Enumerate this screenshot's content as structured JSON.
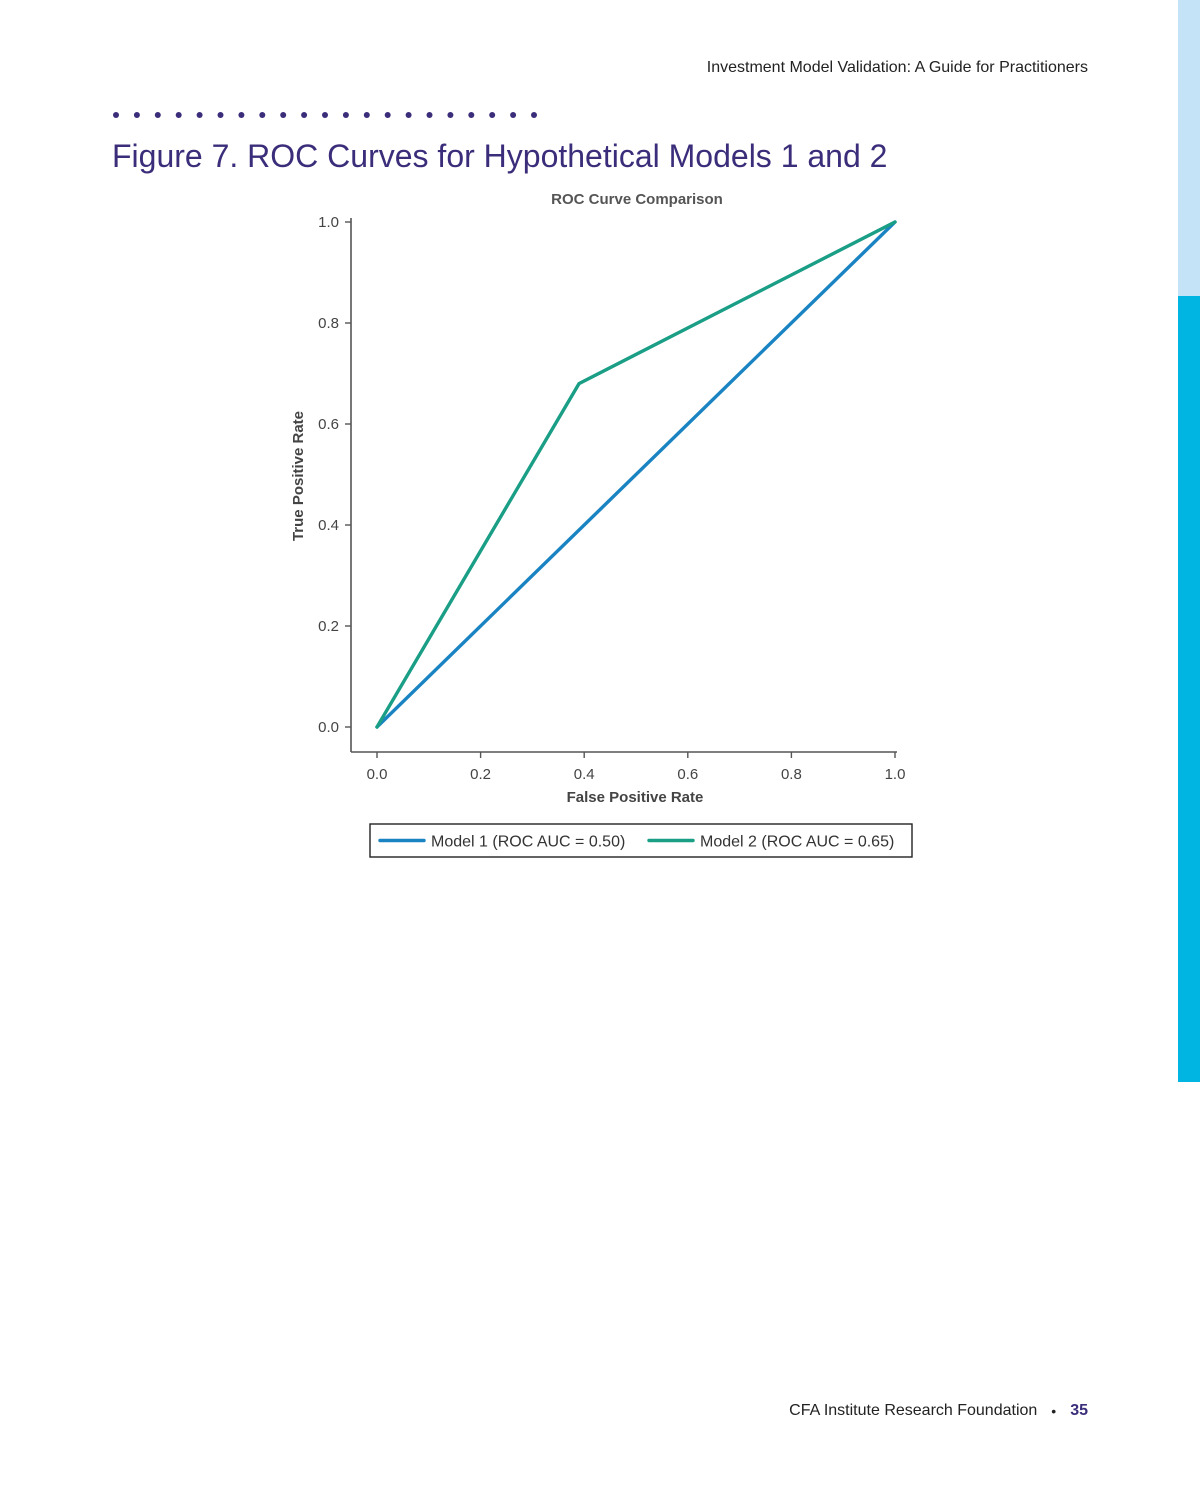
{
  "page": {
    "running_head": "Investment Model Validation: A Guide for Practitioners",
    "figure_title": "Figure 7. ROC Curves for Hypothetical Models 1 and 2",
    "footer_org": "CFA Institute Research Foundation",
    "footer_bullet": "•",
    "page_number": "35"
  },
  "colors": {
    "title_purple": "#3b2d7a",
    "model1_blue": "#1a84c3",
    "model2_green": "#1a9e86",
    "accent_strip": "#00b5e2"
  },
  "chart_data": {
    "type": "line",
    "title": "ROC Curve Comparison",
    "xlabel": "False Positive Rate",
    "ylabel": "True Positive Rate",
    "xlim": [
      0,
      1
    ],
    "ylim": [
      0,
      1
    ],
    "xticks": [
      "0.0",
      "0.2",
      "0.4",
      "0.6",
      "0.8",
      "1.0"
    ],
    "yticks": [
      "0.0",
      "0.2",
      "0.4",
      "0.6",
      "0.8",
      "1.0"
    ],
    "grid": false,
    "legend_position": "bottom",
    "series": [
      {
        "name": "Model 1 (ROC AUC = 0.50)",
        "color": "#1a84c3",
        "x": [
          0.0,
          1.0
        ],
        "y": [
          0.0,
          1.0
        ]
      },
      {
        "name": "Model 2 (ROC AUC = 0.65)",
        "color": "#1a9e86",
        "x": [
          0.0,
          0.39,
          1.0
        ],
        "y": [
          0.0,
          0.68,
          1.0
        ]
      }
    ]
  }
}
